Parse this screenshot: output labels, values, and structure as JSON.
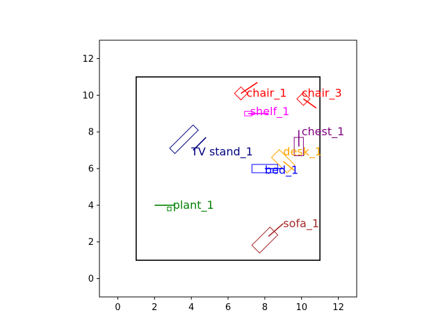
{
  "chart_data": {
    "type": "scatter",
    "title": "",
    "xlabel": "",
    "ylabel": "",
    "xlim": [
      -1,
      13
    ],
    "ylim": [
      -1,
      13
    ],
    "xticks": [
      "0",
      "2",
      "4",
      "6",
      "8",
      "10",
      "12"
    ],
    "yticks": [
      "0",
      "2",
      "4",
      "6",
      "8",
      "10",
      "12"
    ],
    "grid": false,
    "room": {
      "x0": 1,
      "y0": 1,
      "x1": 11,
      "y1": 11,
      "color": "#000000"
    },
    "objects": [
      {
        "label": "chair_1",
        "color": "#ff0000",
        "center": [
          6.7,
          10.1
        ],
        "width": 0.5,
        "height": 0.5,
        "angle": 45,
        "dir_line": [
          [
            6.7,
            10.1
          ],
          [
            7.6,
            10.7
          ]
        ],
        "label_pos": [
          7.0,
          10.1
        ]
      },
      {
        "label": "chair_3",
        "color": "#ff0000",
        "center": [
          10.1,
          9.8
        ],
        "width": 0.5,
        "height": 0.5,
        "angle": -45,
        "dir_line": [
          [
            10.1,
            9.8
          ],
          [
            10.8,
            9.3
          ]
        ],
        "label_pos": [
          10.0,
          10.1
        ]
      },
      {
        "label": "shelf_1",
        "color": "#ff00ff",
        "center": [
          7.1,
          9.0
        ],
        "width": 0.4,
        "height": 0.25,
        "angle": 0,
        "dir_line": [
          [
            7.1,
            9.0
          ],
          [
            8.2,
            9.0
          ]
        ],
        "label_pos": [
          7.2,
          9.1
        ]
      },
      {
        "label": "chest_1",
        "color": "#800080",
        "center": [
          9.85,
          7.2
        ],
        "width": 0.5,
        "height": 1.0,
        "angle": 0,
        "dir_line": [
          [
            9.85,
            7.2
          ],
          [
            9.85,
            8.1
          ]
        ],
        "label_pos": [
          10.0,
          8.0
        ]
      },
      {
        "label": "desk_1",
        "color": "#ffa500",
        "center": [
          9.0,
          6.4
        ],
        "width": 1.2,
        "height": 0.6,
        "angle": -45,
        "dir_line": [
          [
            9.0,
            6.4
          ],
          [
            9.6,
            5.9
          ]
        ],
        "label_pos": [
          9.0,
          6.9
        ]
      },
      {
        "label": "bed_1",
        "color": "#0000ff",
        "center": [
          8.0,
          6.0
        ],
        "width": 1.4,
        "height": 0.45,
        "angle": 0,
        "dir_line": [
          [
            8.0,
            6.0
          ],
          [
            9.0,
            6.0
          ]
        ],
        "label_pos": [
          8.0,
          5.9
        ]
      },
      {
        "label": "TV stand_1",
        "color": "#000080",
        "center": [
          3.6,
          7.6
        ],
        "width": 1.8,
        "height": 0.4,
        "angle": 45,
        "dir_line": [
          [
            4.1,
            7.0
          ],
          [
            4.8,
            7.7
          ]
        ],
        "label_pos": [
          4.0,
          6.9
        ]
      },
      {
        "label": "plant_1",
        "color": "#008000",
        "center": [
          2.8,
          3.8
        ],
        "width": 0.2,
        "height": 0.2,
        "angle": 0,
        "dir_line": [
          [
            2.0,
            4.0
          ],
          [
            3.1,
            4.0
          ]
        ],
        "label_pos": [
          3.0,
          4.0
        ]
      },
      {
        "label": "sofa_1",
        "color": "#a52a2a",
        "center": [
          8.0,
          2.1
        ],
        "width": 1.4,
        "height": 0.6,
        "angle": 45,
        "dir_line": [
          [
            8.2,
            2.3
          ],
          [
            9.0,
            3.0
          ]
        ],
        "label_pos": [
          9.0,
          3.0
        ]
      }
    ]
  }
}
